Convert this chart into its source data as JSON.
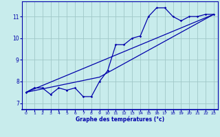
{
  "xlabel": "Graphe des températures (°c)",
  "bg_color": "#c8ecec",
  "grid_color": "#a0c8c8",
  "line_color": "#0000aa",
  "xlim": [
    -0.5,
    23.5
  ],
  "ylim": [
    6.7,
    11.7
  ],
  "xticks": [
    0,
    1,
    2,
    3,
    4,
    5,
    6,
    7,
    8,
    9,
    10,
    11,
    12,
    13,
    14,
    15,
    16,
    17,
    18,
    19,
    20,
    21,
    22,
    23
  ],
  "yticks": [
    7,
    8,
    9,
    10,
    11
  ],
  "series1_x": [
    0,
    1,
    2,
    3,
    4,
    5,
    6,
    7,
    8,
    9,
    10,
    11,
    12,
    13,
    14,
    15,
    16,
    17,
    18,
    19,
    20,
    21,
    22,
    23
  ],
  "series1_y": [
    7.5,
    7.7,
    7.7,
    7.4,
    7.7,
    7.6,
    7.7,
    7.3,
    7.3,
    8.0,
    8.5,
    9.7,
    9.7,
    10.0,
    10.1,
    11.0,
    11.4,
    11.4,
    11.0,
    10.8,
    11.0,
    11.0,
    11.1,
    11.1
  ],
  "series2_x": [
    0,
    23
  ],
  "series2_y": [
    7.5,
    11.1
  ],
  "series3_x": [
    0,
    9,
    23
  ],
  "series3_y": [
    7.5,
    8.2,
    11.1
  ]
}
